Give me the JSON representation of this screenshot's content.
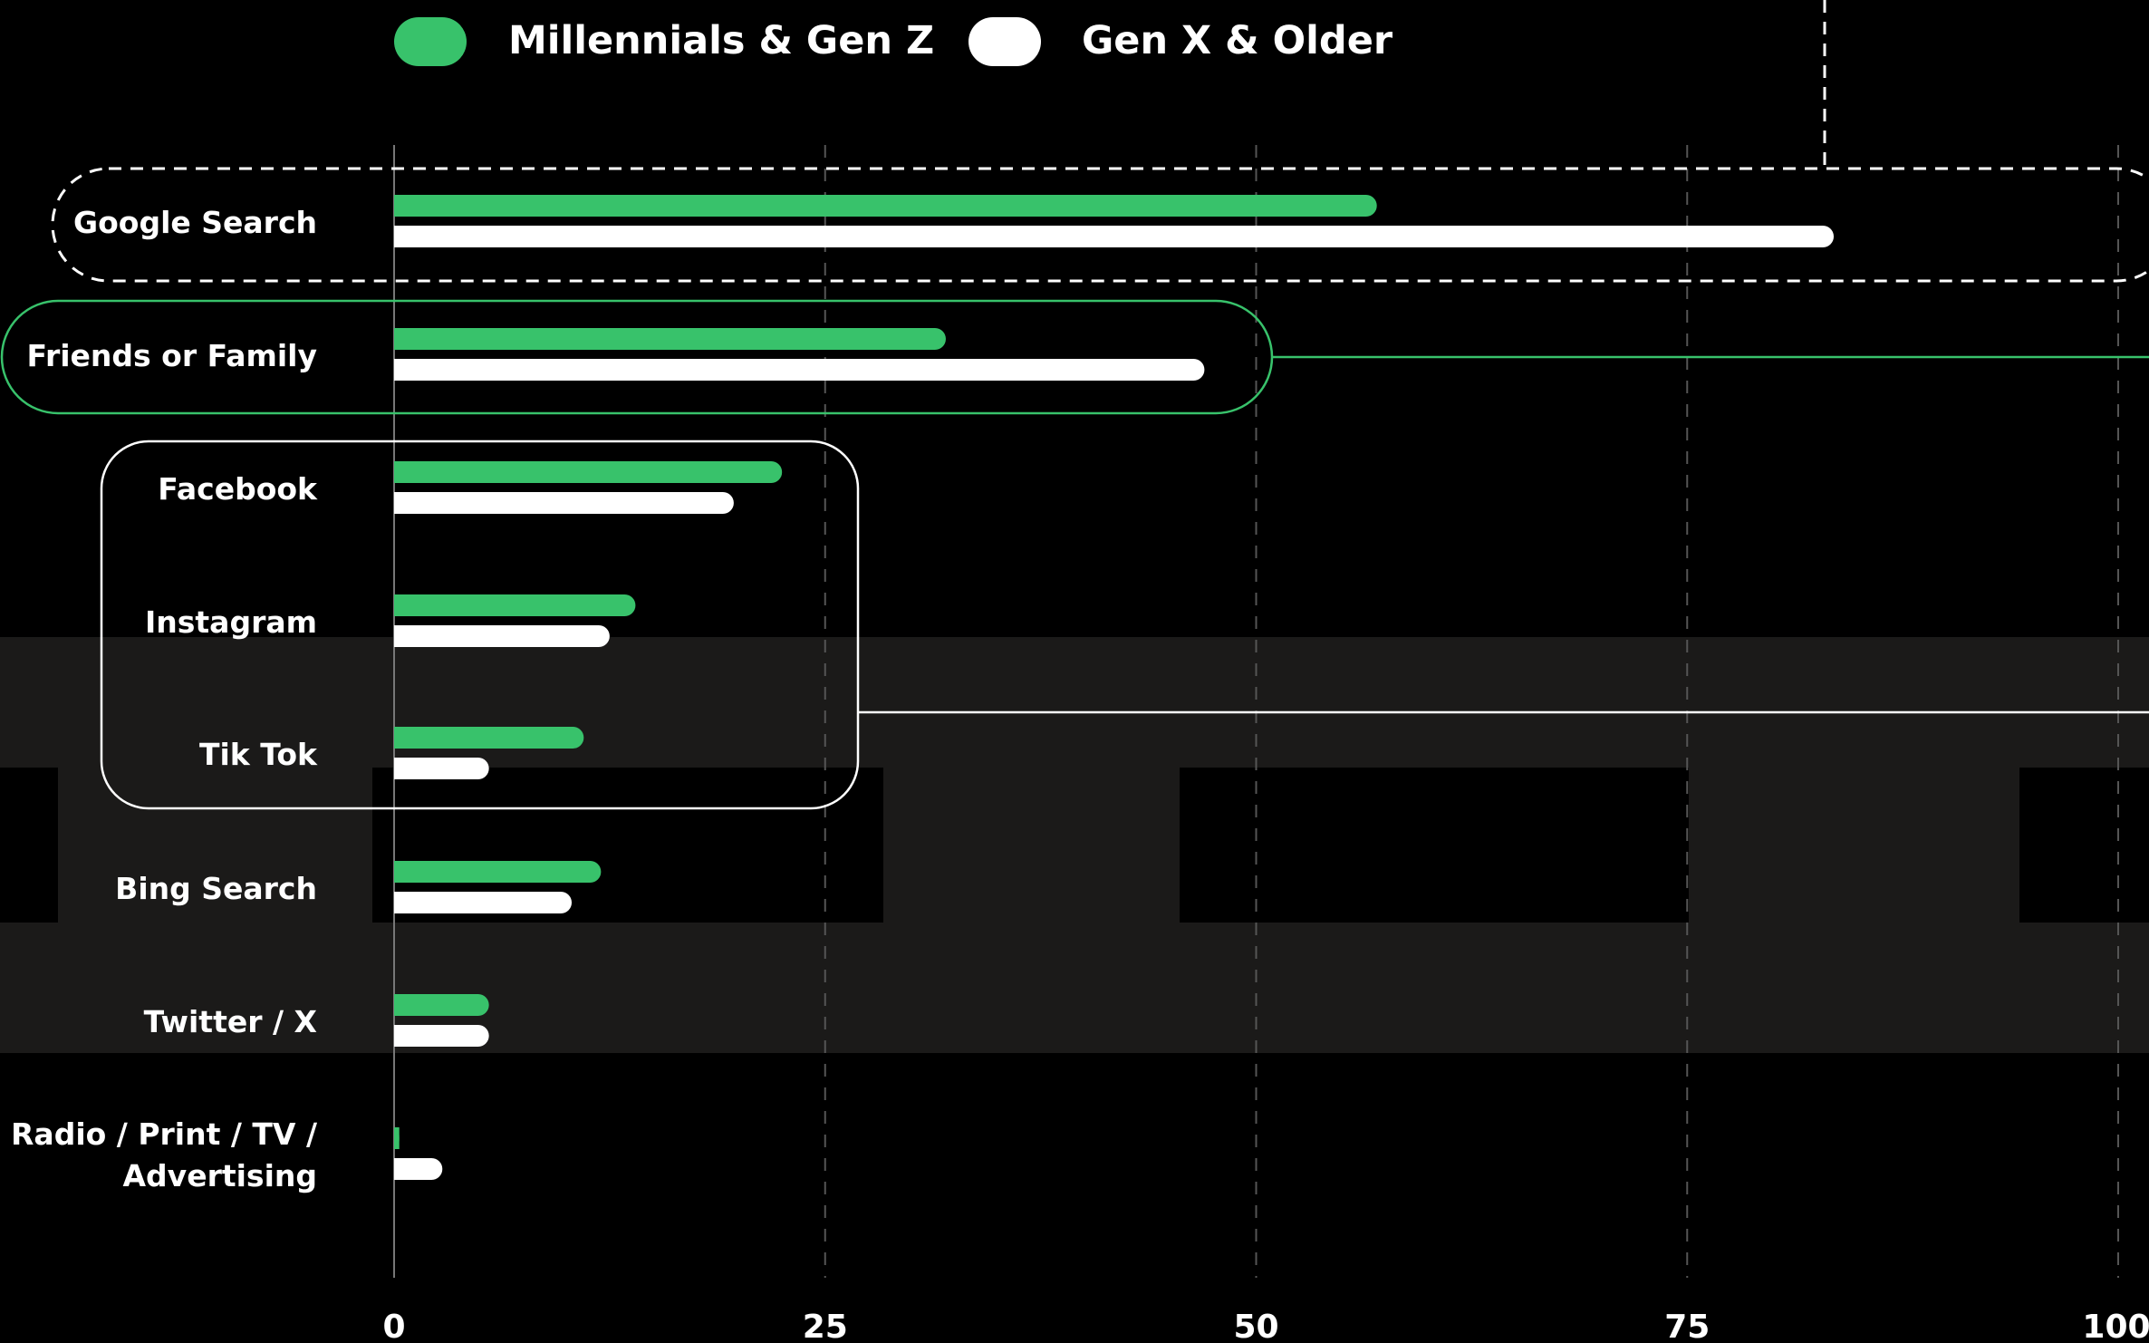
{
  "chart_data": {
    "type": "bar",
    "orientation": "horizontal",
    "categories": [
      "Google Search",
      "Friends or Family",
      "Facebook",
      "Instagram",
      "Tik Tok",
      "Bing Search",
      "Twitter / X",
      "Radio / Print / TV / Advertising"
    ],
    "category_lines": [
      [
        "Google Search"
      ],
      [
        "Friends or Family"
      ],
      [
        "Facebook"
      ],
      [
        "Instagram"
      ],
      [
        "Tik Tok"
      ],
      [
        "Bing Search"
      ],
      [
        "Twitter / X"
      ],
      [
        "Radio / Print / TV /",
        "Advertising"
      ]
    ],
    "series": [
      {
        "name": "Millennials & Gen Z",
        "color": "#38c26b",
        "values": [
          57,
          32,
          22.5,
          14,
          11,
          12,
          5.5,
          0.3
        ]
      },
      {
        "name": "Gen X & Older",
        "color": "#ffffff",
        "values": [
          83.5,
          47,
          19.7,
          12.5,
          5.5,
          10.3,
          5.5,
          2.8
        ]
      }
    ],
    "x_ticks": [
      0,
      25,
      50,
      75,
      100
    ],
    "xlim": [
      0,
      100
    ],
    "grid": "vertical-dashed",
    "legend_position": "top"
  },
  "colors": {
    "background": "#000000",
    "band": "#1b1a19",
    "accent_green": "#38c26b",
    "white": "#ffffff",
    "grid": "#555555",
    "axis": "#777777"
  }
}
